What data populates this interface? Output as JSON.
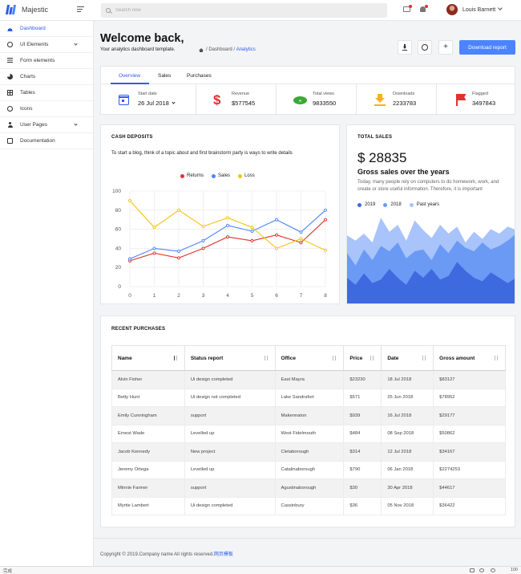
{
  "brand": {
    "name": "Majestic"
  },
  "search": {
    "placeholder": "Search now"
  },
  "user": {
    "name": "Louis Barnett"
  },
  "sidebar": {
    "items": [
      {
        "label": "Dashboard",
        "icon": "home-icon",
        "active": true
      },
      {
        "label": "UI Elements",
        "icon": "circle-icon",
        "has_caret": true
      },
      {
        "label": "Form elements",
        "icon": "list-icon"
      },
      {
        "label": "Charts",
        "icon": "pie-chart-icon"
      },
      {
        "label": "Tables",
        "icon": "grid-icon"
      },
      {
        "label": "Icons",
        "icon": "smile-icon"
      },
      {
        "label": "User Pages",
        "icon": "user-icon",
        "has_caret": true
      },
      {
        "label": "Documentation",
        "icon": "document-icon"
      }
    ]
  },
  "header": {
    "title": "Welcome back,",
    "subtitle": "Your analytics dashboard template.",
    "breadcrumb": {
      "sep1": "/",
      "item1": "Dashboard",
      "sep2": "/",
      "current": "Analytics"
    },
    "add_label": "+",
    "download_report": "Download report"
  },
  "overview": {
    "tabs": [
      "Overview",
      "Sales",
      "Purchases"
    ],
    "active_tab": 0,
    "stats": [
      {
        "label": "Start date",
        "value": "26 Jul 2018",
        "icon": "calendar-icon"
      },
      {
        "label": "Revenue",
        "value": "$577545",
        "icon": "dollar-icon"
      },
      {
        "label": "Total views",
        "value": "9833550",
        "icon": "eye-icon"
      },
      {
        "label": "Downloads",
        "value": "2233783",
        "icon": "download-icon"
      },
      {
        "label": "Flagged",
        "value": "3497843",
        "icon": "flag-icon"
      }
    ]
  },
  "cash_deposits": {
    "title": "CASH DEPOSITS",
    "description": "To start a blog, think of a topic about and first brainstorm party is ways to write details"
  },
  "total_sales": {
    "title": "TOTAL SALES",
    "amount": "$ 28835",
    "subtitle": "Gross sales over the years",
    "description": "Today, many people rely on computers to do homework, work, and create or store useful information. Therefore, it is important",
    "legend": [
      {
        "name": "2019",
        "color": "#3e6ae0"
      },
      {
        "name": "2018",
        "color": "#6b9af5"
      },
      {
        "name": "Past years",
        "color": "#a9c3fb"
      }
    ]
  },
  "chart_data": [
    {
      "type": "line",
      "x": [
        0,
        1,
        2,
        3,
        4,
        5,
        6,
        7,
        8
      ],
      "ylim": [
        0,
        100
      ],
      "yticks": [
        0,
        20,
        40,
        60,
        80,
        100
      ],
      "grid": true,
      "legend_position": "top",
      "series": [
        {
          "name": "Returns",
          "color": "#e0322e",
          "values": [
            27,
            35,
            30,
            40,
            52,
            48,
            54,
            46,
            70
          ]
        },
        {
          "name": "Sales",
          "color": "#4c84ff",
          "values": [
            29,
            40,
            37,
            48,
            64,
            58,
            70,
            57,
            80
          ]
        },
        {
          "name": "Loss",
          "color": "#f5c211",
          "values": [
            90,
            62,
            80,
            63,
            72,
            62,
            40,
            50,
            38
          ]
        }
      ]
    },
    {
      "type": "area",
      "grid": false,
      "x": [
        0,
        1,
        2,
        3,
        4,
        5,
        6,
        7,
        8,
        9,
        10,
        11,
        12,
        13,
        14,
        15,
        16,
        17,
        18,
        19,
        20
      ],
      "ylim": [
        0,
        100
      ],
      "series": [
        {
          "name": "Past years",
          "color": "#a9c3fb",
          "values": [
            78,
            72,
            80,
            70,
            98,
            82,
            90,
            72,
            95,
            84,
            75,
            90,
            80,
            88,
            70,
            82,
            74,
            85,
            80,
            88,
            84
          ]
        },
        {
          "name": "2018",
          "color": "#6b9af5",
          "values": [
            58,
            44,
            62,
            50,
            66,
            60,
            70,
            52,
            60,
            62,
            50,
            68,
            58,
            72,
            64,
            60,
            70,
            62,
            66,
            72,
            80
          ]
        },
        {
          "name": "2019",
          "color": "#3e6ae0",
          "values": [
            30,
            22,
            35,
            24,
            28,
            40,
            30,
            22,
            38,
            30,
            40,
            28,
            32,
            48,
            38,
            30,
            26,
            36,
            30,
            24,
            30
          ]
        }
      ]
    }
  ],
  "recent_purchases": {
    "title": "RECENT PURCHASES",
    "columns": [
      "Name",
      "Status report",
      "Office",
      "Price",
      "Date",
      "Gross amount"
    ],
    "rows": [
      [
        "Alvin Fisher",
        "Ui design completed",
        "East Mayra",
        "$23230",
        "18 Jul 2018",
        "$83127"
      ],
      [
        "Betty Hunt",
        "Ui design not completed",
        "Lake Sandrafort",
        "$571",
        "25 Jun 2018",
        "$78952"
      ],
      [
        "Emily Cunningham",
        "support",
        "Makennaton",
        "$939",
        "16 Jul 2018",
        "$29177"
      ],
      [
        "Ernest Wade",
        "Levelled up",
        "West Fidelmouth",
        "$484",
        "08 Sep 2018",
        "$50862"
      ],
      [
        "Jacob Kennedy",
        "New project",
        "Cletaborough",
        "$314",
        "12 Jul 2018",
        "$34167"
      ],
      [
        "Jeremy Ortega",
        "Levelled up",
        "Catalinaborough",
        "$790",
        "06 Jan 2018",
        "$2274253"
      ],
      [
        "Minnie Farmer",
        "support",
        "Agustinaborough",
        "$30",
        "30 Apr 2018",
        "$44617"
      ],
      [
        "Myrtie Lambert",
        "Ui design completed",
        "Cassinbury",
        "$36",
        "05 Nov 2018",
        "$36422"
      ]
    ]
  },
  "footer": {
    "text": "Copyright © 2019.Company name All rights reserved.",
    "link": "网页模板"
  },
  "statusbar": {
    "left": "完成",
    "zoom": "100"
  }
}
